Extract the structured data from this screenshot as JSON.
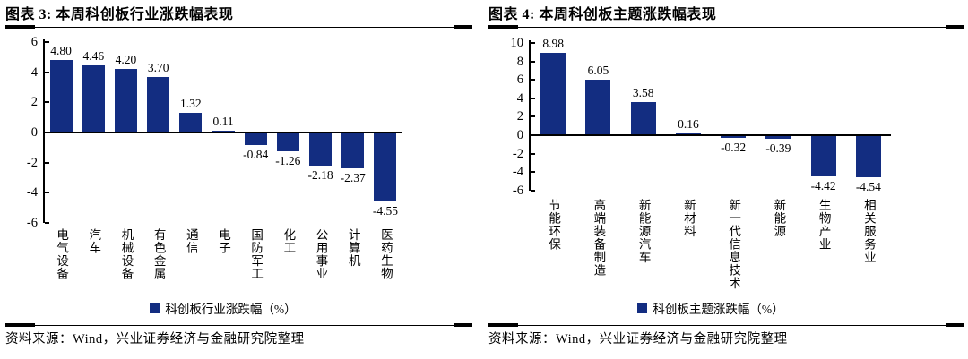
{
  "panels": [
    {
      "title": "图表 3: 本周科创板行业涨跌幅表现",
      "legend_label": "科创板行业涨跌幅（%）",
      "source": "资料来源：Wind，兴业证券经济与金融研究院整理"
    },
    {
      "title": "图表 4: 本周科创板主题涨跌幅表现",
      "legend_label": "科创板主题涨跌幅（%）",
      "source": "资料来源：Wind，兴业证券经济与金融研究院整理"
    }
  ],
  "colors": {
    "bar": "#132D81",
    "axis": "#000000",
    "background": "#ffffff"
  },
  "chart_data": [
    {
      "type": "bar",
      "title": "图表 3: 本周科创板行业涨跌幅表现",
      "categories": [
        "电气设备",
        "汽车",
        "机械设备",
        "有色金属",
        "通信",
        "电子",
        "国防军工",
        "化工",
        "公用事业",
        "计算机",
        "医药生物"
      ],
      "values": [
        4.8,
        4.46,
        4.2,
        3.7,
        1.32,
        0.11,
        -0.84,
        -1.26,
        -2.18,
        -2.37,
        -4.55
      ],
      "legend": [
        "科创板行业涨跌幅（%）"
      ],
      "legend_position": "bottom",
      "xlabel": "",
      "ylabel": "",
      "ylim": [
        -6,
        6
      ],
      "yticks": [
        6,
        4,
        2,
        0,
        -2,
        -4,
        -6
      ],
      "grid": false,
      "data_labels": true
    },
    {
      "type": "bar",
      "title": "图表 4: 本周科创板主题涨跌幅表现",
      "categories": [
        "节能环保",
        "高端装备制造",
        "新能源汽车",
        "新材料",
        "新一代信息技术",
        "新能源",
        "生物产业",
        "相关服务业"
      ],
      "values": [
        8.98,
        6.05,
        3.58,
        0.16,
        -0.32,
        -0.39,
        -4.42,
        -4.54
      ],
      "legend": [
        "科创板主题涨跌幅（%）"
      ],
      "legend_position": "bottom",
      "xlabel": "",
      "ylabel": "",
      "ylim": [
        -6,
        10
      ],
      "yticks": [
        10,
        8,
        6,
        4,
        2,
        0,
        -2,
        -4,
        -6
      ],
      "grid": false,
      "data_labels": true
    }
  ]
}
